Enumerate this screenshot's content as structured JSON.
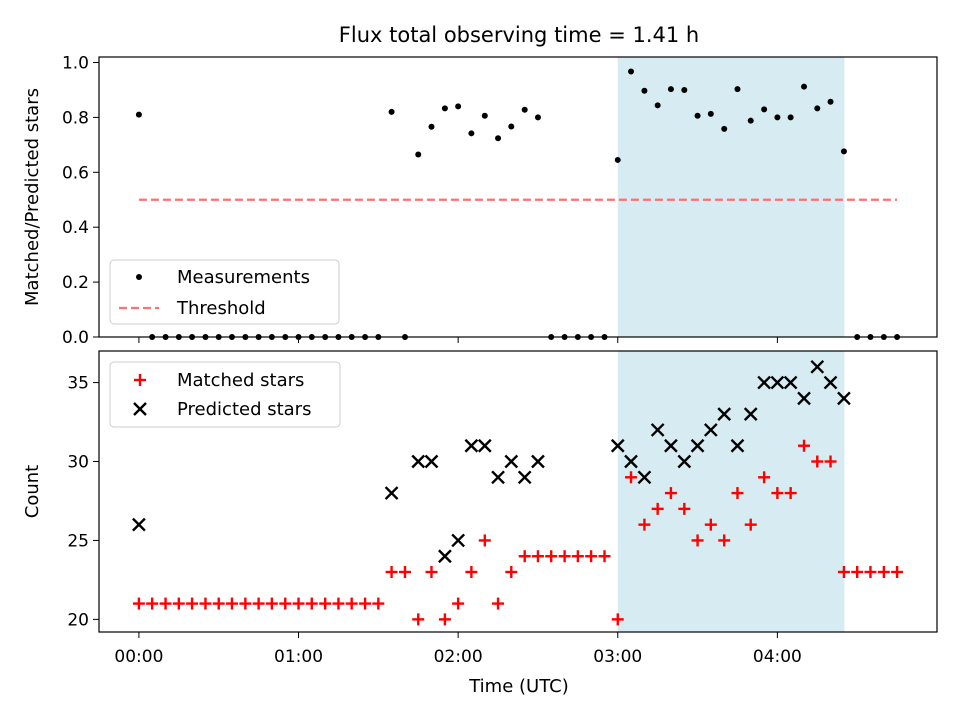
{
  "chart_data": {
    "type": "scatter",
    "title": "Flux total observing time = 1.41 h",
    "xlabel": "Time (UTC)",
    "x_unit": "hours since 00:00 UTC",
    "xlim": [
      -0.25,
      5.0
    ],
    "x_ticks": [
      {
        "value": 0,
        "label": "00:00"
      },
      {
        "value": 1,
        "label": "01:00"
      },
      {
        "value": 2,
        "label": "02:00"
      },
      {
        "value": 3,
        "label": "03:00"
      },
      {
        "value": 4,
        "label": "04:00"
      }
    ],
    "shaded_region": {
      "x_start": 3.0,
      "x_end": 4.42,
      "color": "#add8e6"
    },
    "panels": [
      {
        "ylabel": "Matched/Predicted stars",
        "ylim": [
          0,
          1.02
        ],
        "y_ticks": [
          "0.0",
          "0.2",
          "0.4",
          "0.6",
          "0.8",
          "1.0"
        ],
        "y_tick_values": [
          0,
          0.2,
          0.4,
          0.6,
          0.8,
          1.0
        ],
        "legend_position": "lower-left",
        "series": [
          {
            "name": "Measurements",
            "marker": "dot",
            "color": "#000000",
            "x": [
              0,
              0.083,
              0.167,
              0.25,
              0.333,
              0.417,
              0.5,
              0.583,
              0.667,
              0.75,
              0.833,
              0.917,
              1.0,
              1.083,
              1.167,
              1.25,
              1.333,
              1.417,
              1.5,
              1.583,
              1.667,
              1.75,
              1.833,
              1.917,
              2.0,
              2.083,
              2.167,
              2.25,
              2.333,
              2.417,
              2.5,
              2.583,
              2.667,
              2.75,
              2.833,
              2.917,
              3.0,
              3.083,
              3.167,
              3.25,
              3.333,
              3.417,
              3.5,
              3.583,
              3.667,
              3.75,
              3.833,
              3.917,
              4.0,
              4.083,
              4.167,
              4.25,
              4.333,
              4.417,
              4.5,
              4.583,
              4.667,
              4.75
            ],
            "y": [
              0.81,
              0,
              0,
              0,
              0,
              0,
              0,
              0,
              0,
              0,
              0,
              0,
              0,
              0,
              0,
              0,
              0,
              0,
              0,
              0.82,
              0,
              0.665,
              0.766,
              0.833,
              0.84,
              0.742,
              0.806,
              0.724,
              0.767,
              0.828,
              0.8,
              0,
              0,
              0,
              0,
              0,
              0.645,
              0.967,
              0.897,
              0.844,
              0.903,
              0.9,
              0.806,
              0.813,
              0.758,
              0.903,
              0.788,
              0.829,
              0.8,
              0.8,
              0.912,
              0.833,
              0.857,
              0.676,
              0,
              0,
              0,
              0
            ]
          },
          {
            "name": "Threshold",
            "marker": "dashed-line",
            "color": "#ff7070",
            "x": [
              0,
              4.75
            ],
            "y": [
              0.5,
              0.5
            ]
          }
        ]
      },
      {
        "ylabel": "Count",
        "ylim": [
          19.2,
          37.0
        ],
        "y_ticks": [
          "20",
          "25",
          "30",
          "35"
        ],
        "y_tick_values": [
          20,
          25,
          30,
          35
        ],
        "legend_position": "upper-left",
        "series": [
          {
            "name": "Matched stars",
            "marker": "plus",
            "color": "#ff0000",
            "x": [
              0,
              0.083,
              0.167,
              0.25,
              0.333,
              0.417,
              0.5,
              0.583,
              0.667,
              0.75,
              0.833,
              0.917,
              1.0,
              1.083,
              1.167,
              1.25,
              1.333,
              1.417,
              1.5,
              1.583,
              1.667,
              1.75,
              1.833,
              1.917,
              2.0,
              2.083,
              2.167,
              2.25,
              2.333,
              2.417,
              2.5,
              2.583,
              2.667,
              2.75,
              2.833,
              2.917,
              3.0,
              3.083,
              3.167,
              3.25,
              3.333,
              3.417,
              3.5,
              3.583,
              3.667,
              3.75,
              3.833,
              3.917,
              4.0,
              4.083,
              4.167,
              4.25,
              4.333,
              4.417,
              4.5,
              4.583,
              4.667,
              4.75
            ],
            "y": [
              21,
              21,
              21,
              21,
              21,
              21,
              21,
              21,
              21,
              21,
              21,
              21,
              21,
              21,
              21,
              21,
              21,
              21,
              21,
              23,
              23,
              20,
              23,
              20,
              21,
              23,
              25,
              21,
              23,
              24,
              24,
              24,
              24,
              24,
              24,
              24,
              20,
              29,
              26,
              27,
              28,
              27,
              25,
              26,
              25,
              28,
              26,
              29,
              28,
              28,
              31,
              30,
              30,
              23,
              23,
              23,
              23,
              23
            ]
          },
          {
            "name": "Predicted stars",
            "marker": "x",
            "color": "#000000",
            "x": [
              0,
              1.583,
              1.75,
              1.833,
              1.917,
              2.0,
              2.083,
              2.167,
              2.25,
              2.333,
              2.417,
              2.5,
              3.0,
              3.083,
              3.167,
              3.25,
              3.333,
              3.417,
              3.5,
              3.583,
              3.667,
              3.75,
              3.833,
              3.917,
              4.0,
              4.083,
              4.167,
              4.25,
              4.333,
              4.417
            ],
            "y": [
              26,
              28,
              30,
              30,
              24,
              25,
              31,
              31,
              29,
              30,
              29,
              30,
              31,
              30,
              29,
              32,
              31,
              30,
              31,
              32,
              33,
              31,
              33,
              35,
              35,
              35,
              34,
              36,
              35,
              34
            ]
          }
        ]
      }
    ]
  }
}
